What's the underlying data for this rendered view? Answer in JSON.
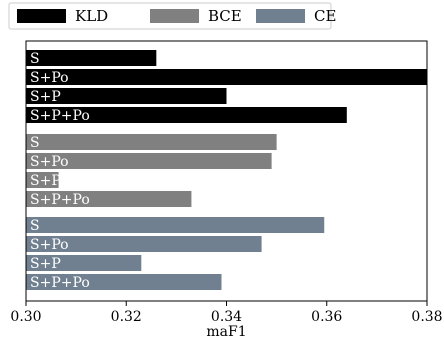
{
  "chart_data": {
    "type": "bar",
    "orientation": "horizontal",
    "title": "",
    "xlabel": "maF1",
    "ylabel": "",
    "xlim": [
      0.3,
      0.38
    ],
    "xticks": [
      "0.30",
      "0.32",
      "0.34",
      "0.36",
      "0.38"
    ],
    "grid": false,
    "legend_position": "top",
    "legend": [
      {
        "name": "KLD",
        "color": "#000000"
      },
      {
        "name": "BCE",
        "color": "#808080"
      },
      {
        "name": "CE",
        "color": "#708090"
      }
    ],
    "groups": [
      {
        "name": "KLD",
        "color": "#000000",
        "bars": [
          {
            "label": "S",
            "value": 0.326
          },
          {
            "label": "S+Po",
            "value": 0.38
          },
          {
            "label": "S+P",
            "value": 0.34
          },
          {
            "label": "S+P+Po",
            "value": 0.364
          }
        ]
      },
      {
        "name": "BCE",
        "color": "#808080",
        "bars": [
          {
            "label": "S",
            "value": 0.35
          },
          {
            "label": "S+Po",
            "value": 0.349
          },
          {
            "label": "S+P",
            "value": 0.3065
          },
          {
            "label": "S+P+Po",
            "value": 0.333
          }
        ]
      },
      {
        "name": "CE",
        "color": "#708090",
        "bars": [
          {
            "label": "S",
            "value": 0.3595
          },
          {
            "label": "S+Po",
            "value": 0.347
          },
          {
            "label": "S+P",
            "value": 0.323
          },
          {
            "label": "S+P+Po",
            "value": 0.339
          }
        ]
      }
    ]
  }
}
